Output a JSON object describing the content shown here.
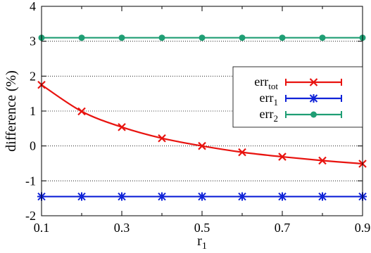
{
  "chart_data": {
    "type": "line",
    "xlabel": "r",
    "xlabel_sub": "1",
    "ylabel": "difference (%)",
    "xlim": [
      0.1,
      0.9
    ],
    "ylim": [
      -2,
      4
    ],
    "xticks": [
      "0.1",
      "0.3",
      "0.5",
      "0.7",
      "0.9"
    ],
    "xtick_values": [
      0.1,
      0.3,
      0.5,
      0.7,
      0.9
    ],
    "yticks": [
      "-2",
      "-1",
      "0",
      "1",
      "2",
      "3",
      "4"
    ],
    "ytick_values": [
      -2,
      -1,
      0,
      1,
      2,
      3,
      4
    ],
    "grid": "horizontal dotted",
    "legend_position": "right",
    "x": [
      0.1,
      0.2,
      0.3,
      0.4,
      0.5,
      0.6,
      0.7,
      0.8,
      0.9
    ],
    "series": [
      {
        "name": "err",
        "name_sub": "tot",
        "color": "#e8130f",
        "marker": "x",
        "values": [
          1.75,
          0.99,
          0.54,
          0.22,
          0.0,
          -0.18,
          -0.31,
          -0.42,
          -0.51
        ]
      },
      {
        "name": "err",
        "name_sub": "1",
        "color": "#1023d8",
        "marker": "star",
        "values": [
          -1.45,
          -1.45,
          -1.45,
          -1.45,
          -1.45,
          -1.45,
          -1.45,
          -1.45,
          -1.45
        ]
      },
      {
        "name": "err",
        "name_sub": "2",
        "color": "#1f9e74",
        "marker": "circle",
        "values": [
          3.1,
          3.1,
          3.1,
          3.1,
          3.1,
          3.1,
          3.1,
          3.1,
          3.1
        ]
      }
    ]
  }
}
